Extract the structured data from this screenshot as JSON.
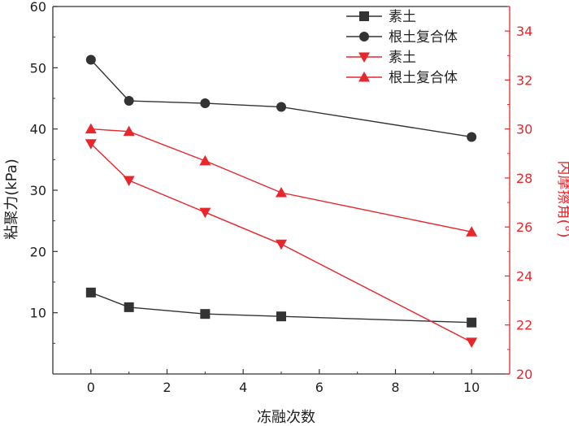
{
  "chart_data": {
    "type": "line",
    "xlabel": "冻融次数",
    "ylabel_left": "粘聚力(kPa)",
    "ylabel_right": "内摩擦角(°)",
    "xlim": [
      -1,
      11
    ],
    "ylim_left": [
      0,
      60
    ],
    "ylim_right": [
      20,
      35
    ],
    "x": [
      0,
      1,
      3,
      5,
      10
    ],
    "x_ticks": [
      0,
      2,
      4,
      6,
      8,
      10
    ],
    "x_tick_labels": [
      "0",
      "2",
      "4",
      "6",
      "8",
      "10"
    ],
    "y_left_ticks": [
      10,
      20,
      30,
      40,
      50,
      60
    ],
    "y_left_tick_labels": [
      "10",
      "20",
      "30",
      "40",
      "50",
      "60"
    ],
    "y_right_ticks": [
      20,
      22,
      24,
      26,
      28,
      30,
      32,
      34
    ],
    "y_right_tick_labels": [
      "20",
      "22",
      "24",
      "26",
      "28",
      "30",
      "32",
      "34"
    ],
    "grid": false,
    "legend_position": "top-right",
    "series": [
      {
        "name": "素土",
        "axis": "left",
        "marker": "square",
        "color": "#333333",
        "values": [
          13.3,
          10.9,
          9.8,
          9.4,
          8.4
        ]
      },
      {
        "name": "根土复合体",
        "axis": "left",
        "marker": "circle",
        "color": "#333333",
        "values": [
          51.3,
          44.6,
          44.2,
          43.6,
          38.7
        ]
      },
      {
        "name": "素土",
        "axis": "right",
        "marker": "triangle-down",
        "color": "#e8262c",
        "values": [
          29.4,
          27.9,
          26.6,
          25.3,
          21.3
        ]
      },
      {
        "name": "根土复合体",
        "axis": "right",
        "marker": "triangle-up",
        "color": "#e8262c",
        "values": [
          30.0,
          29.9,
          28.7,
          27.4,
          25.8
        ]
      }
    ]
  }
}
